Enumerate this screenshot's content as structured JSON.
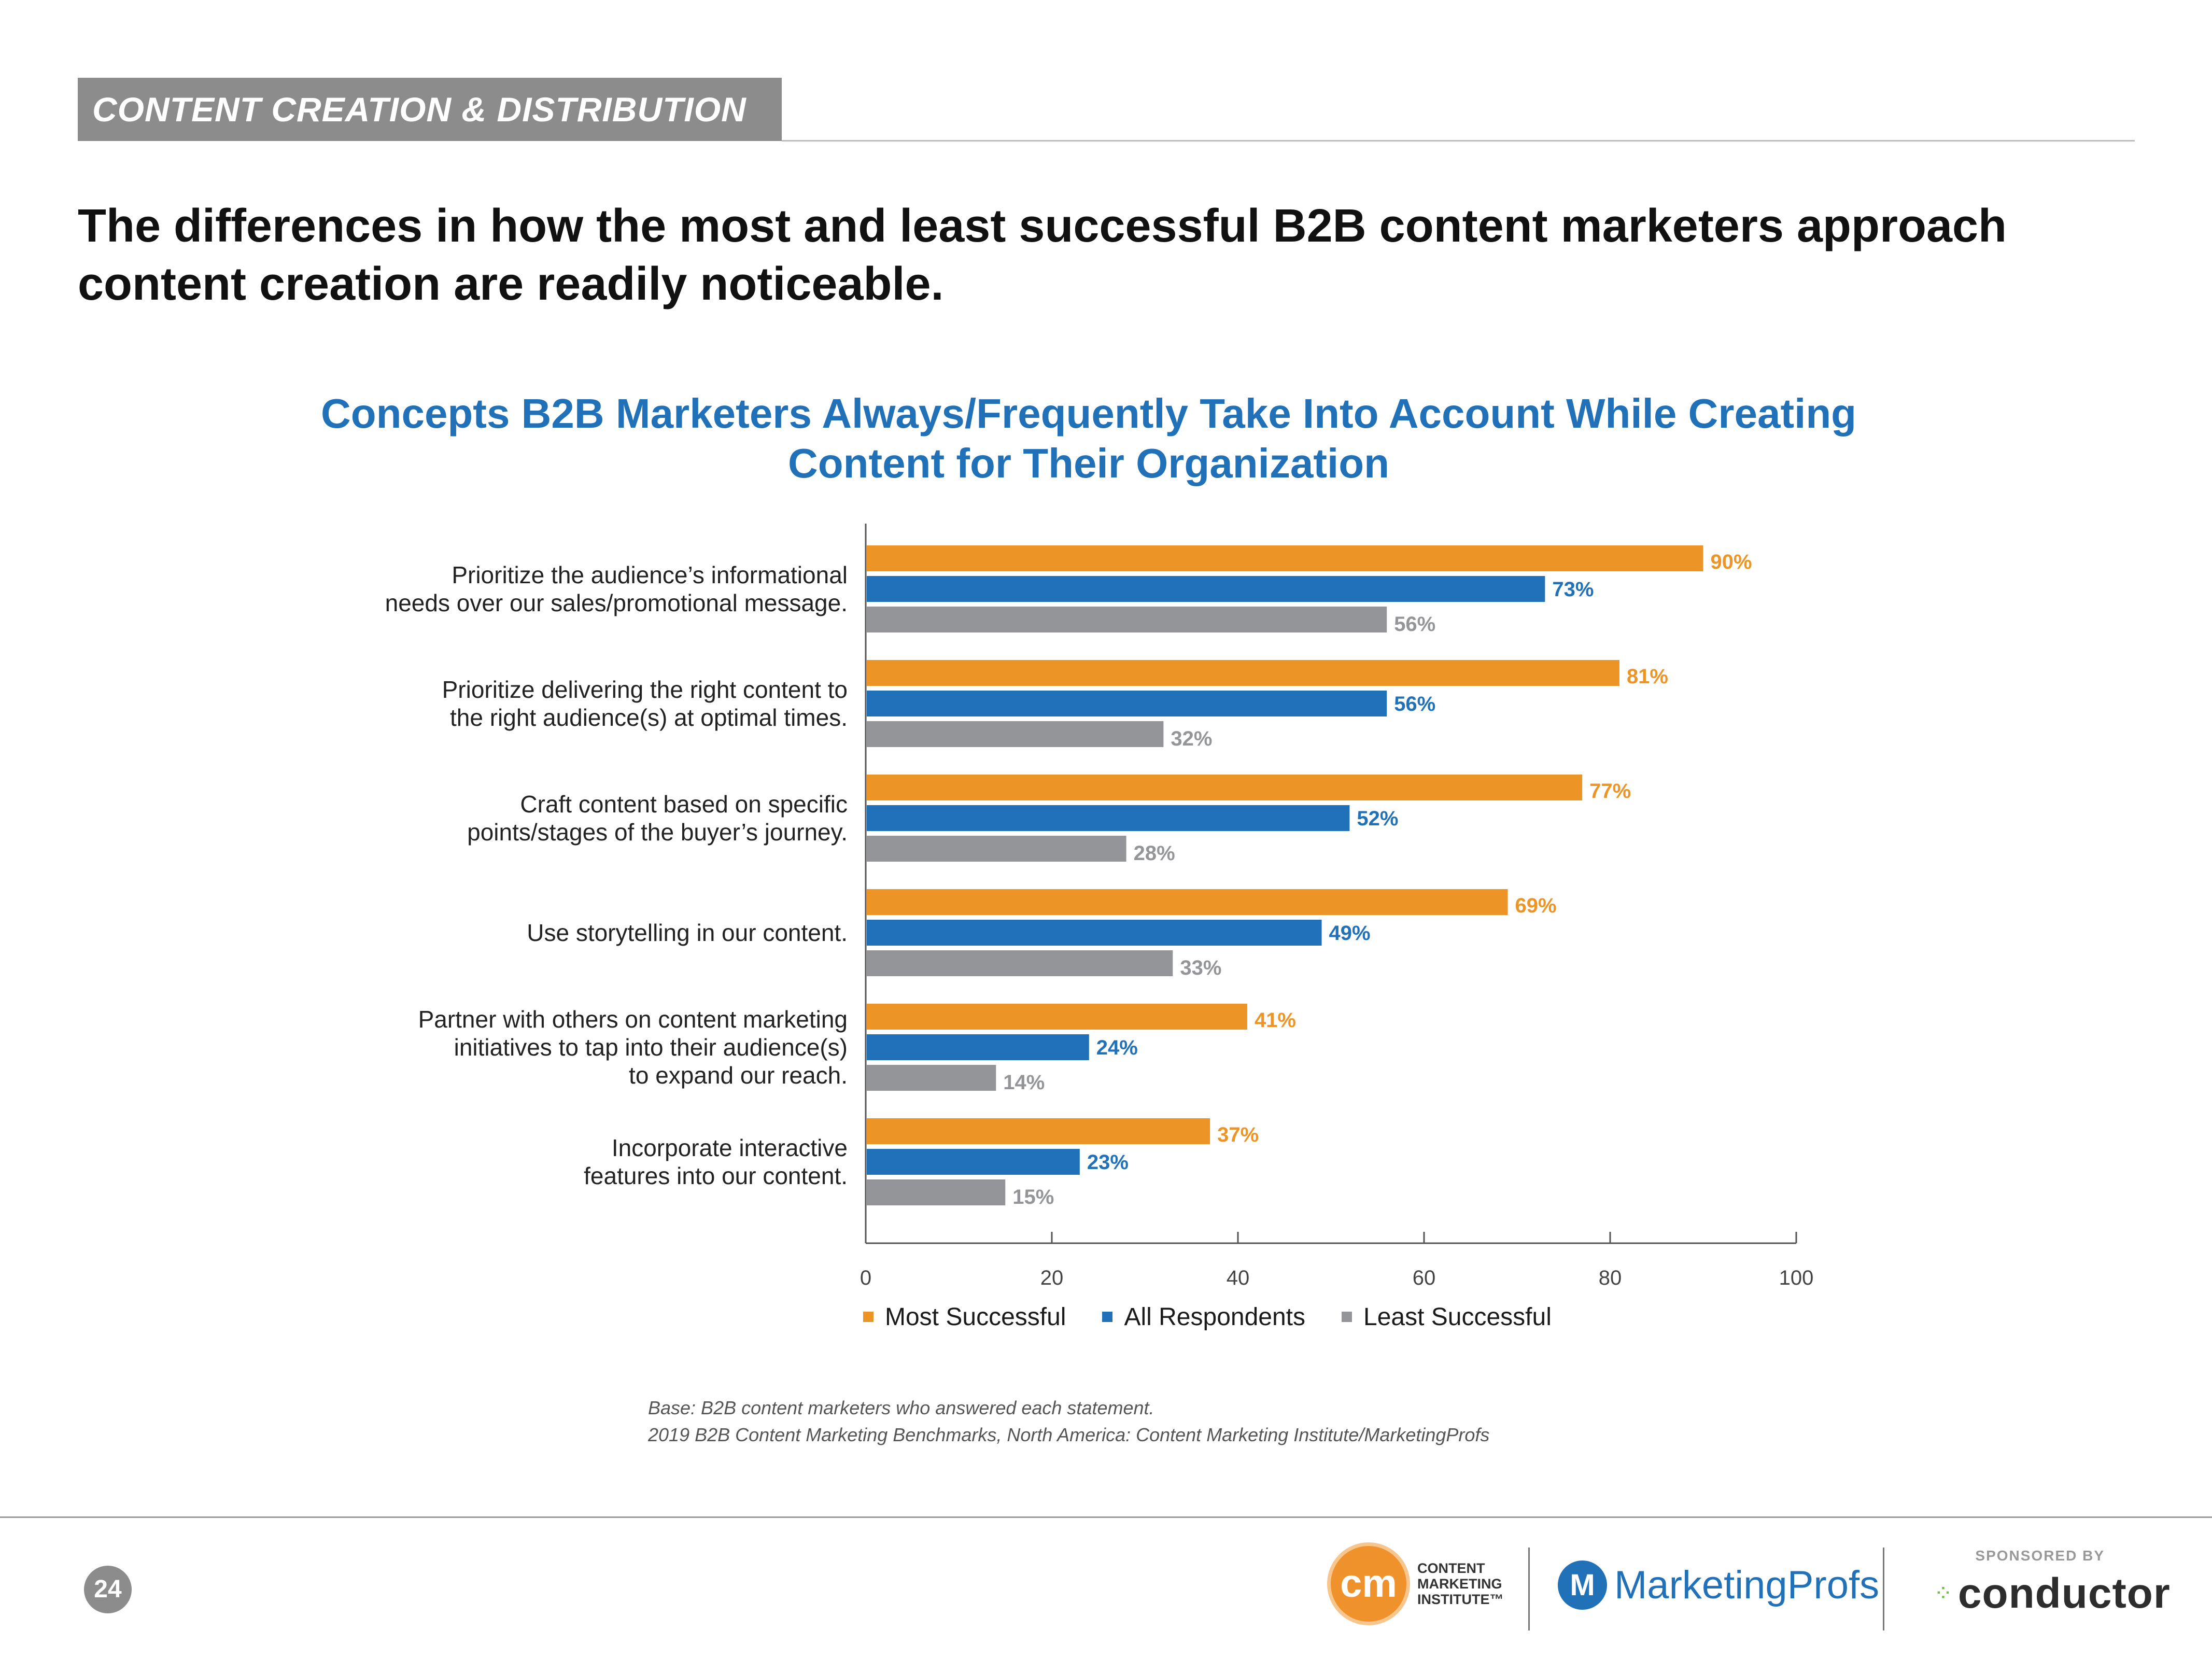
{
  "section_tag": "CONTENT CREATION & DISTRIBUTION",
  "headline": "The differences in how the most and least successful B2B content marketers approach content creation are readily noticeable.",
  "chart_data": {
    "type": "bar",
    "orientation": "horizontal",
    "title": "Concepts B2B Marketers Always/Frequently Take Into Account While Creating Content for Their Organization",
    "categories": [
      [
        "Prioritize the audience’s informational",
        "needs over our sales/promotional message."
      ],
      [
        "Prioritize delivering the right content to",
        "the right audience(s) at optimal times."
      ],
      [
        "Craft content based on specific",
        "points/stages of the buyer’s journey."
      ],
      [
        "Use storytelling in our content."
      ],
      [
        "Partner with others on content marketing",
        "initiatives to tap into their audience(s)",
        "to expand our reach."
      ],
      [
        "Incorporate interactive",
        "features into our content."
      ]
    ],
    "series": [
      {
        "name": "Most Successful",
        "color": "#ec9526",
        "values": [
          90,
          81,
          77,
          69,
          41,
          37
        ]
      },
      {
        "name": "All Respondents",
        "color": "#2171b9",
        "values": [
          73,
          56,
          52,
          49,
          24,
          23
        ]
      },
      {
        "name": "Least Successful",
        "color": "#939598",
        "values": [
          56,
          32,
          28,
          33,
          14,
          15
        ]
      }
    ],
    "xlim": [
      0,
      100
    ],
    "xticks": [
      0,
      20,
      40,
      60,
      80,
      100
    ],
    "value_suffix": "%",
    "legend_position": "bottom"
  },
  "notes": {
    "base": "Base: B2B content marketers who answered each statement.",
    "source": "2019 B2B Content Marketing Benchmarks, North America: Content Marketing Institute/MarketingProfs"
  },
  "footer": {
    "page_number": "24",
    "cmi_mark": "cm",
    "cmi_lines": [
      "CONTENT",
      "MARKETING",
      "INSTITUTE™"
    ],
    "mprofs_mark": "M",
    "mprofs_name": "MarketingProfs",
    "sponsored_by": "SPONSORED BY",
    "sponsor_name": "conductor"
  }
}
